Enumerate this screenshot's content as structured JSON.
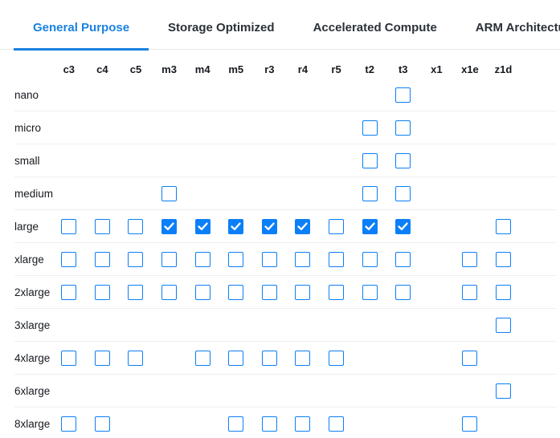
{
  "tabs": {
    "items": [
      {
        "label": "General Purpose",
        "active": true
      },
      {
        "label": "Storage Optimized",
        "active": false
      },
      {
        "label": "Accelerated Compute",
        "active": false
      },
      {
        "label": "ARM Architecture",
        "active": false
      }
    ]
  },
  "colors": {
    "active_tab": "#1a82e2",
    "checkbox": "#0b7ff7",
    "tab_bar_border": "#e9e9e9",
    "row_border": "#efefef",
    "text": "#16191f"
  },
  "matrix": {
    "columns": [
      "c3",
      "c4",
      "c5",
      "m3",
      "m4",
      "m5",
      "r3",
      "r4",
      "r5",
      "t2",
      "t3",
      "x1",
      "x1e",
      "z1d"
    ],
    "rows": [
      {
        "label": "nano",
        "cells": {
          "t3": "unchecked"
        }
      },
      {
        "label": "micro",
        "cells": {
          "t2": "unchecked",
          "t3": "unchecked"
        }
      },
      {
        "label": "small",
        "cells": {
          "t2": "unchecked",
          "t3": "unchecked"
        }
      },
      {
        "label": "medium",
        "cells": {
          "m3": "unchecked",
          "t2": "unchecked",
          "t3": "unchecked"
        }
      },
      {
        "label": "large",
        "cells": {
          "c3": "unchecked",
          "c4": "unchecked",
          "c5": "unchecked",
          "m3": "checked",
          "m4": "checked",
          "m5": "checked",
          "r3": "checked",
          "r4": "checked",
          "r5": "unchecked",
          "t2": "checked",
          "t3": "checked",
          "z1d": "unchecked"
        }
      },
      {
        "label": "xlarge",
        "cells": {
          "c3": "unchecked",
          "c4": "unchecked",
          "c5": "unchecked",
          "m3": "unchecked",
          "m4": "unchecked",
          "m5": "unchecked",
          "r3": "unchecked",
          "r4": "unchecked",
          "r5": "unchecked",
          "t2": "unchecked",
          "t3": "unchecked",
          "x1e": "unchecked",
          "z1d": "unchecked"
        }
      },
      {
        "label": "2xlarge",
        "cells": {
          "c3": "unchecked",
          "c4": "unchecked",
          "c5": "unchecked",
          "m3": "unchecked",
          "m4": "unchecked",
          "m5": "unchecked",
          "r3": "unchecked",
          "r4": "unchecked",
          "r5": "unchecked",
          "t2": "unchecked",
          "t3": "unchecked",
          "x1e": "unchecked",
          "z1d": "unchecked"
        }
      },
      {
        "label": "3xlarge",
        "cells": {
          "z1d": "unchecked"
        }
      },
      {
        "label": "4xlarge",
        "cells": {
          "c3": "unchecked",
          "c4": "unchecked",
          "c5": "unchecked",
          "m4": "unchecked",
          "m5": "unchecked",
          "r3": "unchecked",
          "r4": "unchecked",
          "r5": "unchecked",
          "x1e": "unchecked"
        }
      },
      {
        "label": "6xlarge",
        "cells": {
          "z1d": "unchecked"
        }
      },
      {
        "label": "8xlarge",
        "cells": {
          "c3": "unchecked",
          "c4": "unchecked",
          "m5": "unchecked",
          "r3": "unchecked",
          "r4": "unchecked",
          "r5": "unchecked",
          "x1e": "unchecked"
        }
      }
    ]
  }
}
